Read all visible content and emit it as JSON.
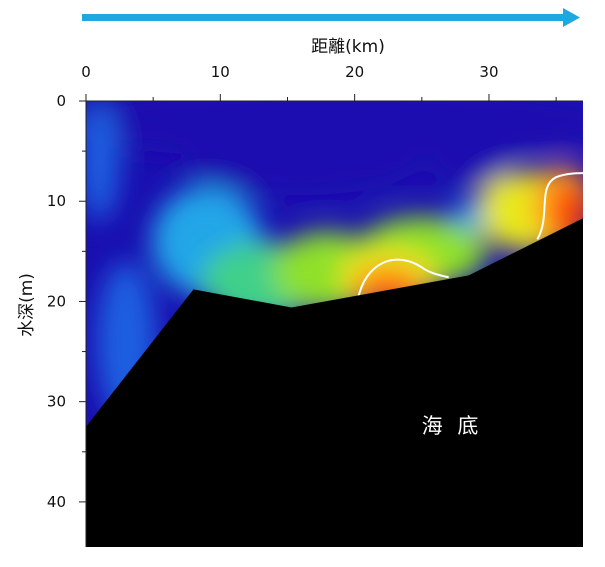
{
  "chart_data": {
    "type": "heatmap",
    "arrow": {
      "color": "#1ea7e0"
    },
    "xlabel": "距離(km)",
    "ylabel": "水深(m)",
    "x_ticks": [
      "0",
      "10",
      "20",
      "30"
    ],
    "y_ticks": [
      "0",
      "10",
      "20",
      "30",
      "40"
    ],
    "xlim": [
      0,
      37
    ],
    "ylim": [
      0,
      44.5
    ],
    "x_tick_values": [
      0,
      10,
      20,
      30
    ],
    "y_tick_values": [
      0,
      10,
      20,
      30,
      40
    ],
    "annotation": "海 底",
    "seafloor": {
      "color": "#000000",
      "profile": [
        [
          0,
          32.5
        ],
        [
          8,
          18.8
        ],
        [
          15.3,
          20.6
        ],
        [
          28.5,
          17.4
        ],
        [
          37,
          11.7
        ]
      ]
    },
    "contour": {
      "color": "#ffffff"
    },
    "colormap": [
      "#1a0fb0",
      "#1f5ee0",
      "#21a6e8",
      "#3fd08a",
      "#8ee02a",
      "#e8e81a",
      "#ffa41a",
      "#ff5a0f",
      "#f01a0a"
    ],
    "field_peaks": [
      {
        "x": 22.5,
        "y": 19,
        "level": 1.0
      },
      {
        "x": 35.5,
        "y": 11,
        "level": 1.0
      },
      {
        "x": 28.5,
        "y": 12.5,
        "level": 0.78
      },
      {
        "x": 11,
        "y": 16,
        "level": 0.45
      }
    ]
  }
}
